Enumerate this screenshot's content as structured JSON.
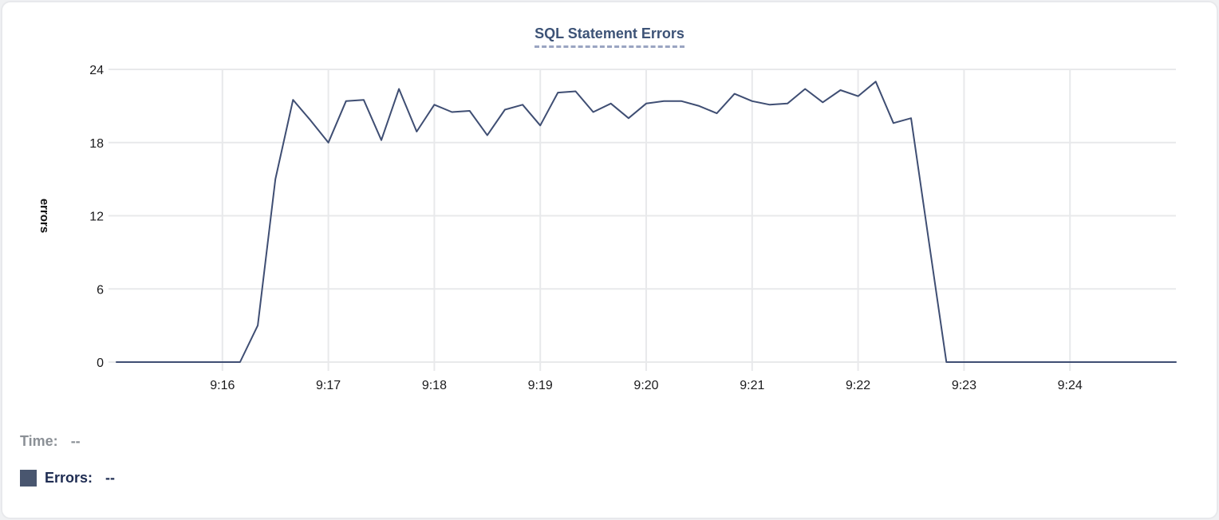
{
  "title": "SQL Statement Errors",
  "chart_data": {
    "type": "line",
    "title": "SQL Statement Errors",
    "xlabel": "",
    "ylabel": "errors",
    "ylim": [
      0,
      24
    ],
    "y_ticks": [
      0,
      6,
      12,
      18,
      24
    ],
    "x_tick_labels": [
      "9:16",
      "9:17",
      "9:18",
      "9:19",
      "9:20",
      "9:21",
      "9:22",
      "9:23",
      "9:24"
    ],
    "x_range": [
      "9:15:00",
      "9:25:00"
    ],
    "grid": true,
    "legend_position": "bottom-left",
    "line_color": "#3f4e73",
    "grid_color": "#e8e9eb",
    "series": [
      {
        "name": "Errors",
        "times": [
          "9:15:00",
          "9:15:10",
          "9:15:20",
          "9:15:30",
          "9:15:40",
          "9:15:50",
          "9:16:00",
          "9:16:10",
          "9:16:20",
          "9:16:30",
          "9:16:40",
          "9:16:50",
          "9:17:00",
          "9:17:10",
          "9:17:20",
          "9:17:30",
          "9:17:40",
          "9:17:50",
          "9:18:00",
          "9:18:10",
          "9:18:20",
          "9:18:30",
          "9:18:40",
          "9:18:50",
          "9:19:00",
          "9:19:10",
          "9:19:20",
          "9:19:30",
          "9:19:40",
          "9:19:50",
          "9:20:00",
          "9:20:10",
          "9:20:20",
          "9:20:30",
          "9:20:40",
          "9:20:50",
          "9:21:00",
          "9:21:10",
          "9:21:20",
          "9:21:30",
          "9:21:40",
          "9:21:50",
          "9:22:00",
          "9:22:10",
          "9:22:20",
          "9:22:30",
          "9:22:40",
          "9:22:50",
          "9:23:00",
          "9:23:10",
          "9:23:20",
          "9:23:30",
          "9:23:40",
          "9:23:50",
          "9:24:00",
          "9:24:10",
          "9:24:20",
          "9:24:30",
          "9:24:40",
          "9:24:50",
          "9:25:00"
        ],
        "values": [
          0,
          0,
          0,
          0,
          0,
          0,
          0,
          0,
          3,
          15,
          21.5,
          19.8,
          18,
          21.4,
          21.5,
          18.2,
          22.4,
          18.9,
          21.1,
          20.5,
          20.6,
          18.6,
          20.7,
          21.1,
          19.4,
          22.1,
          22.2,
          20.5,
          21.2,
          20,
          21.2,
          21.4,
          21.4,
          21,
          20.4,
          22,
          21.4,
          21.1,
          21.2,
          22.4,
          21.3,
          22.3,
          21.8,
          23,
          19.6,
          20,
          10,
          0,
          0,
          0,
          0,
          0,
          0,
          0,
          0,
          0,
          0,
          0,
          0,
          0,
          0
        ]
      }
    ]
  },
  "legend": {
    "time_label": "Time:",
    "time_value": "--",
    "errors_label": "Errors:",
    "errors_value": "--",
    "swatch_color": "#49566f"
  },
  "colors": {
    "accent_title": "#3d5377",
    "title_underline": "#9aa5c2",
    "line": "#3f4e73",
    "grid": "#e8e9eb",
    "tick_text": "#1a1a1c",
    "card_border": "#e8e9ec",
    "legend_muted": "#8b9096",
    "legend_dark": "#1e2c52"
  }
}
